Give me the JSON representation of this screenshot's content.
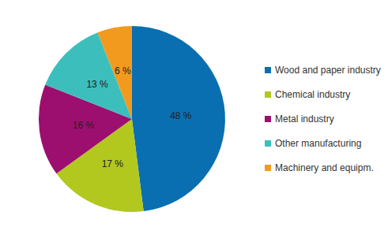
{
  "chart_data": {
    "type": "pie",
    "categories": [
      "Wood and paper industry",
      "Chemical industry",
      "Metal industry",
      "Other manufacturing",
      "Machinery and equipm."
    ],
    "values": [
      48,
      17,
      16,
      13,
      6
    ],
    "value_labels": [
      "48 %",
      "17 %",
      "16 %",
      "13 %",
      "6 %"
    ],
    "colors": [
      "#0a6fb0",
      "#b2c81f",
      "#9c0f6f",
      "#3cbfbc",
      "#f29a1d"
    ],
    "data_labels": true,
    "legend": "right"
  }
}
